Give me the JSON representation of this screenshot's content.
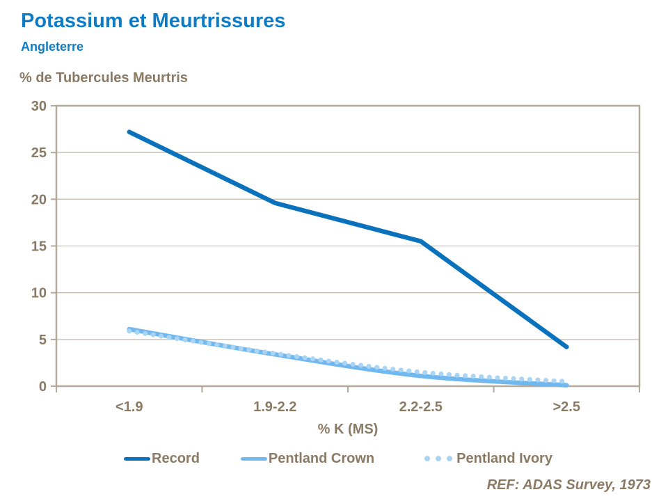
{
  "header": {
    "title": "Potassium et Meurtrissures",
    "subtitle": "Angleterre"
  },
  "footer": {
    "ref": "REF: ADAS Survey, 1973"
  },
  "palette": {
    "title_blue": "#0d7cc4",
    "text_brown": "#8a7a64",
    "axis_border": "#b3a99b",
    "gridline": "#c8bfb1"
  },
  "chart_data": {
    "type": "line",
    "title": "Potassium et Meurtrissures",
    "subtitle": "Angleterre",
    "ylabel": "% de Tubercules Meurtris",
    "xlabel": "% K (MS)",
    "categories": [
      "<1.9",
      "1.9-2.2",
      "2.2-2.5",
      ">2.5"
    ],
    "series": [
      {
        "name": "Record",
        "values": [
          27.2,
          19.6,
          15.5,
          4.2
        ],
        "color": "#0a72bc",
        "style": "solid",
        "smooth": false
      },
      {
        "name": "Pentland Crown",
        "values": [
          6.1,
          3.4,
          1.1,
          0.1
        ],
        "color": "#70b8ee",
        "style": "solid",
        "smooth": true
      },
      {
        "name": "Pentland Ivory",
        "values": [
          5.9,
          3.5,
          1.5,
          0.5
        ],
        "color": "#a9d4f4",
        "style": "dotted",
        "smooth": true
      }
    ],
    "ylim": [
      0,
      30
    ],
    "yticks": [
      0,
      5,
      10,
      15,
      20,
      25,
      30
    ],
    "grid": true,
    "legend_position": "bottom"
  }
}
